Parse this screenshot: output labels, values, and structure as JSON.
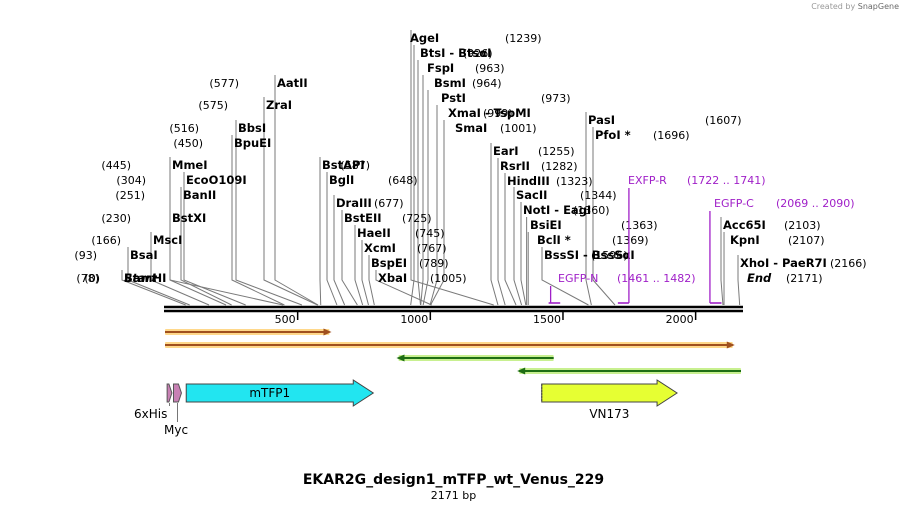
{
  "credit": {
    "prefix": "Created by",
    "brand": "SnapGene"
  },
  "title": "EKAR2G_design1_mTFP_wt_Venus_229",
  "subtitle": "2171 bp",
  "sequence_length": 2171,
  "colors": {
    "site": "#000000",
    "primer": "#a020c8",
    "feature_mtfp": "#22e5f0",
    "feature_vn173": "#e6ff33",
    "tag": "#c880b4",
    "orf": "#a0501e",
    "orf_highlight": "#ffd88a",
    "green_orf": "#1e6e14",
    "green_highlight": "#c8f090"
  },
  "sites": [
    {
      "name": "Start",
      "pos": "(0)",
      "bp": 0,
      "italic": true
    },
    {
      "name": "BamHI",
      "pos": "(78)",
      "bp": 78
    },
    {
      "name": "BsaI",
      "pos": "(93)",
      "bp": 93
    },
    {
      "name": "MscI",
      "pos": "(166)",
      "bp": 166
    },
    {
      "name": "BstXI",
      "pos": "(230)",
      "bp": 230
    },
    {
      "name": "BanII",
      "pos": "(251)",
      "bp": 251
    },
    {
      "name": "EcoO109I",
      "pos": "(304)",
      "bp": 304
    },
    {
      "name": "MmeI",
      "pos": "(445)",
      "bp": 445
    },
    {
      "name": "BpuEI",
      "pos": "(450)",
      "bp": 450
    },
    {
      "name": "BbsI",
      "pos": "(516)",
      "bp": 516
    },
    {
      "name": "ZraI",
      "pos": "(575)",
      "bp": 575
    },
    {
      "name": "AatII",
      "pos": "(577)",
      "bp": 577
    },
    {
      "name": "BstAPI",
      "pos": "(587)",
      "bp": 587
    },
    {
      "name": "BglI",
      "pos": "(648)",
      "bp": 648
    },
    {
      "name": "DraIII",
      "pos": "(677)",
      "bp": 677
    },
    {
      "name": "BstEII",
      "pos": "(725)",
      "bp": 725
    },
    {
      "name": "HaeII",
      "pos": "(745)",
      "bp": 745
    },
    {
      "name": "XcmI",
      "pos": "(767)",
      "bp": 767
    },
    {
      "name": "BspEI",
      "pos": "(789)",
      "bp": 789
    },
    {
      "name": "XbaI",
      "pos": "(1005)",
      "bp": 1005
    },
    {
      "name": "SmaI",
      "pos": "(1001)",
      "bp": 1001
    },
    {
      "name": "XmaI  -  TspMI",
      "pos": "(999)",
      "bp": 999
    },
    {
      "name": "PstI",
      "pos": "(973)",
      "bp": 973
    },
    {
      "name": "BsmI",
      "pos": "(964)",
      "bp": 964
    },
    {
      "name": "FspI",
      "pos": "(963)",
      "bp": 963
    },
    {
      "name": "BtsI  -  BtsαI",
      "pos": "(926)",
      "bp": 926
    },
    {
      "name": "AgeI",
      "pos": "(1239)",
      "bp": 1239
    },
    {
      "name": "EarI",
      "pos": "(1255)",
      "bp": 1255
    },
    {
      "name": "RsrII",
      "pos": "(1282)",
      "bp": 1282
    },
    {
      "name": "HindIII",
      "pos": "(1323)",
      "bp": 1323
    },
    {
      "name": "SacII",
      "pos": "(1344)",
      "bp": 1344
    },
    {
      "name": "NotI  -  EagI",
      "pos": "(1360)",
      "bp": 1360
    },
    {
      "name": "BsiEI",
      "pos": "(1363)",
      "bp": 1363
    },
    {
      "name": "BclI *",
      "pos": "(1369)",
      "bp": 1369
    },
    {
      "name": "BssSI  -  BssSαI",
      "pos": "(1596)",
      "bp": 1596
    },
    {
      "name": "PasI",
      "pos": "(1607)",
      "bp": 1607
    },
    {
      "name": "PfoI *",
      "pos": "(1696)",
      "bp": 1696
    },
    {
      "name": "Acc65I",
      "pos": "(2103)",
      "bp": 2103
    },
    {
      "name": "KpnI",
      "pos": "(2107)",
      "bp": 2107
    },
    {
      "name": "XhoI  -  PaeR7I",
      "pos": "(2166)",
      "bp": 2166
    },
    {
      "name": "End",
      "pos": "(2171)",
      "bp": 2171,
      "italic": true
    }
  ],
  "primers": [
    {
      "name": "EXFP-R",
      "range": "(1722 .. 1741)",
      "start": 1722,
      "end": 1741
    },
    {
      "name": "EGFP-C",
      "range": "(2069 .. 2090)",
      "start": 2069,
      "end": 2090
    },
    {
      "name": "EGFP-N",
      "range": "(1461 .. 1482)",
      "start": 1461,
      "end": 1482
    }
  ],
  "ruler": {
    "ticks": [
      500,
      1000,
      1500,
      2000
    ],
    "labels": [
      "500",
      "1000",
      "1500",
      "2000"
    ]
  },
  "orfs": [
    {
      "start": 0,
      "end": 620,
      "dir": "fwd",
      "kind": "orange"
    },
    {
      "start": 0,
      "end": 2140,
      "dir": "fwd",
      "kind": "orange"
    },
    {
      "start": 880,
      "end": 1465,
      "dir": "rev",
      "kind": "green"
    },
    {
      "start": 1335,
      "end": 2171,
      "dir": "rev",
      "kind": "green"
    }
  ],
  "features": [
    {
      "name": "6xHis",
      "start": 8,
      "end": 26
    },
    {
      "name": "Myc",
      "start": 32,
      "end": 62
    },
    {
      "name": "mTFP1",
      "start": 80,
      "end": 785
    },
    {
      "name": "VN173",
      "start": 1420,
      "end": 1930
    }
  ]
}
